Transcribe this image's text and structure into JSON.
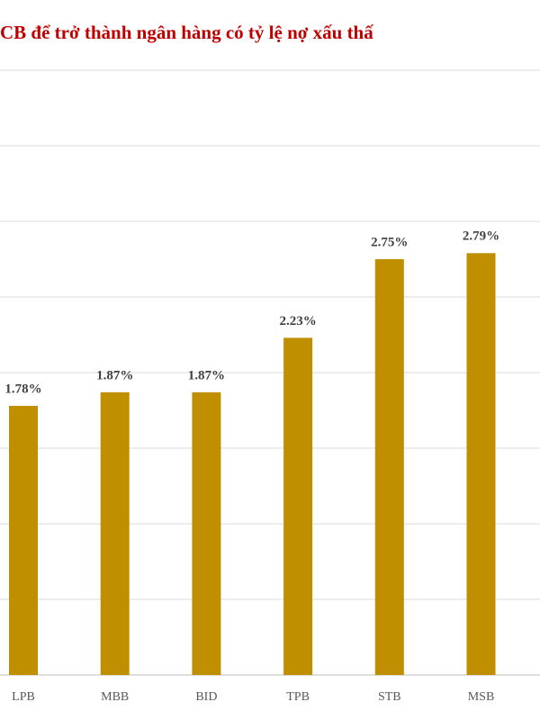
{
  "chart_data": {
    "type": "bar",
    "title": "CB để trở thành ngân hàng có tỷ lệ nợ xấu thấ",
    "categories": [
      "LPB",
      "MBB",
      "BID",
      "TPB",
      "STB",
      "MSB"
    ],
    "values": [
      1.78,
      1.87,
      1.87,
      2.23,
      2.75,
      2.79
    ],
    "value_labels": [
      "1.78%",
      "1.87%",
      "1.87%",
      "2.23%",
      "2.75%",
      "2.79%"
    ],
    "color": "#bf8f00",
    "ylim": [
      0,
      4
    ],
    "yticks": [
      0,
      0.5,
      1,
      1.5,
      2,
      2.5,
      3,
      3.5,
      4
    ],
    "grid": true
  }
}
